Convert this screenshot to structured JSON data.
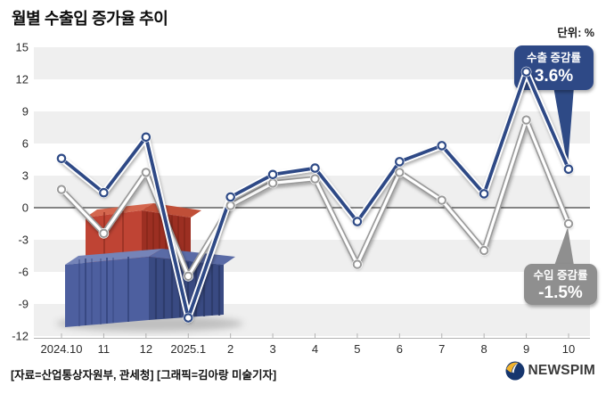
{
  "title": "월별 수출입 증가율 추이",
  "unit_label": "단위: %",
  "footer": {
    "source": "[자료=산업통상자원부, 관세청] [그래픽=김아랑 미술기자]",
    "logo_text": "NEWSPIM"
  },
  "colors": {
    "export_line": "#2e4a86",
    "import_ring": "#999999",
    "import_outline": "#9a9a9a",
    "band_gray": "#efefef",
    "zero_line": "#5e5e5e",
    "axis_line": "#b3b3b3",
    "callout_export_bg": "#2e4a86",
    "callout_import_bg": "#8f8f8f"
  },
  "chart_data": {
    "type": "line",
    "categories": [
      "2024.10",
      "11",
      "12",
      "2025.1",
      "2",
      "3",
      "4",
      "5",
      "6",
      "7",
      "8",
      "9",
      "10"
    ],
    "series": [
      {
        "name": "수출 증감률",
        "color": "#2e4a86",
        "values": [
          4.6,
          1.4,
          6.6,
          -10.3,
          1.0,
          3.1,
          3.7,
          -1.3,
          4.3,
          5.8,
          1.3,
          12.7,
          3.6
        ]
      },
      {
        "name": "수입 증감률",
        "color": "#ffffff",
        "values": [
          1.7,
          -2.4,
          3.3,
          -6.4,
          0.2,
          2.3,
          2.7,
          -5.3,
          3.3,
          0.7,
          -4.0,
          8.2,
          -1.5
        ]
      }
    ],
    "title": "월별 수출입 증가율 추이",
    "xlabel": "",
    "ylabel": "%",
    "ylim": [
      -12,
      15
    ],
    "ytick_step": 3,
    "grid": "horizontal-bands",
    "legend_position": "callouts",
    "callouts": [
      {
        "series": "export",
        "label": "수출 증감률",
        "value_text": "3.6%"
      },
      {
        "series": "import",
        "label": "수입 증감률",
        "value_text": "-1.5%"
      }
    ]
  }
}
